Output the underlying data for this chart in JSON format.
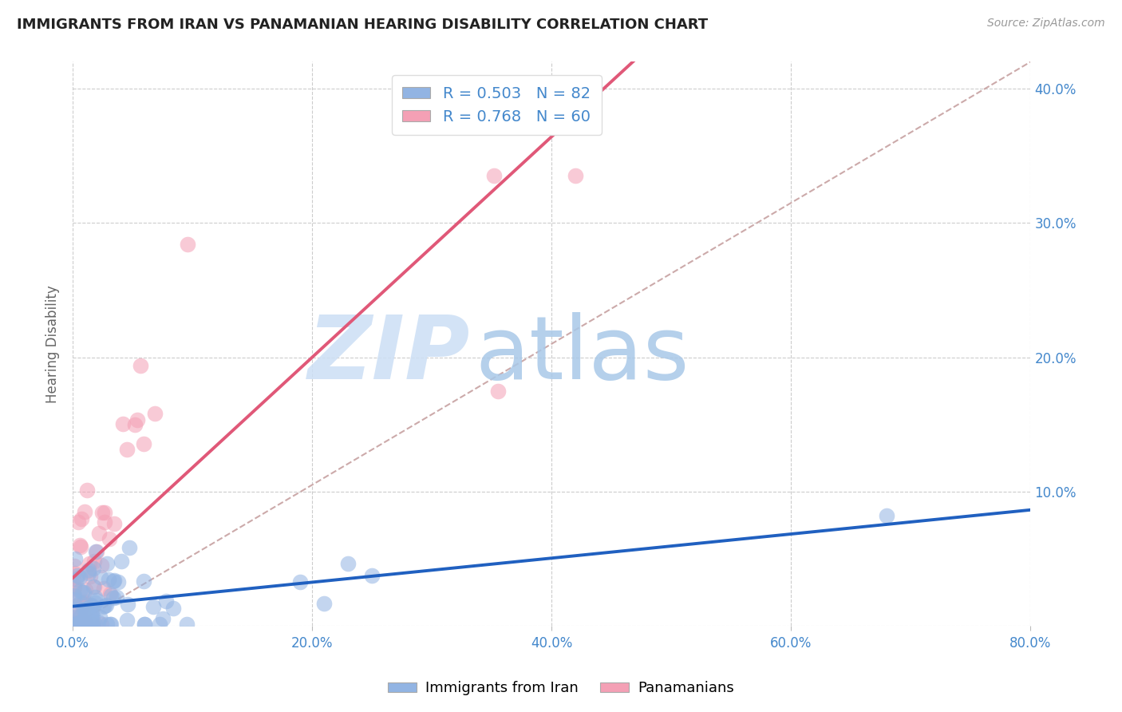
{
  "title": "IMMIGRANTS FROM IRAN VS PANAMANIAN HEARING DISABILITY CORRELATION CHART",
  "source": "Source: ZipAtlas.com",
  "ylabel": "Hearing Disability",
  "xlim": [
    0.0,
    0.8
  ],
  "ylim": [
    0.0,
    0.42
  ],
  "xticks": [
    0.0,
    0.2,
    0.4,
    0.6,
    0.8
  ],
  "yticks": [
    0.0,
    0.1,
    0.2,
    0.3,
    0.4
  ],
  "xtick_labels": [
    "0.0%",
    "20.0%",
    "40.0%",
    "60.0%",
    "80.0%"
  ],
  "ytick_labels": [
    "",
    "10.0%",
    "20.0%",
    "30.0%",
    "40.0%"
  ],
  "iran_color": "#92b4e3",
  "pan_color": "#f4a0b5",
  "iran_line_color": "#2060c0",
  "pan_line_color": "#e05878",
  "diag_line_color": "#ccaaaa",
  "background_color": "#ffffff",
  "grid_color": "#cccccc",
  "iran_R": 0.503,
  "iran_N": 82,
  "pan_R": 0.768,
  "pan_N": 60,
  "legend_text_color": "#4488cc",
  "watermark_zip_color": "#ccdff5",
  "watermark_atlas_color": "#a8c8e8"
}
